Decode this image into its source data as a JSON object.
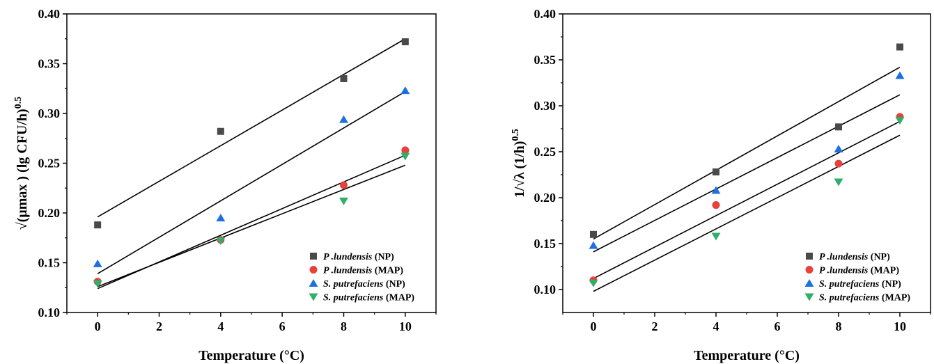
{
  "colors": {
    "series": [
      "#4a4a4a",
      "#e8403a",
      "#1f6fe0",
      "#2faf6a"
    ],
    "fit_line": "#000000",
    "axis": "#000000"
  },
  "chart_data": [
    {
      "type": "scatter",
      "title": "",
      "xlabel": "Temperature (°C)",
      "ylabel_main": "√(μmax ) (lg CFU/h)",
      "ylabel_exp": "0.5",
      "xlim": [
        -1,
        11
      ],
      "ylim": [
        0.1,
        0.4
      ],
      "xticks": [
        "0",
        "2",
        "4",
        "6",
        "8",
        "10"
      ],
      "yticks": [
        "0.10",
        "0.15",
        "0.20",
        "0.25",
        "0.30",
        "0.35",
        "0.40"
      ],
      "legend_position": "bottom-right",
      "grid": false,
      "series": [
        {
          "name_italic": "P .lundensis",
          "name_rest": " (NP)",
          "marker": "square",
          "x": [
            0,
            4,
            8,
            10
          ],
          "y": [
            0.188,
            0.282,
            0.335,
            0.372
          ],
          "fit": {
            "x": [
              0,
              10
            ],
            "y": [
              0.196,
              0.375
            ]
          }
        },
        {
          "name_italic": "P .lundensis",
          "name_rest": " (MAP)",
          "marker": "circle",
          "x": [
            0,
            4,
            8,
            10
          ],
          "y": [
            0.131,
            0.173,
            0.228,
            0.263
          ],
          "fit": {
            "x": [
              0,
              10
            ],
            "y": [
              0.124,
              0.258
            ]
          }
        },
        {
          "name_italic": "S. putrefaciens",
          "name_rest": " (NP)",
          "marker": "triangle-up",
          "x": [
            0,
            4,
            8,
            10
          ],
          "y": [
            0.149,
            0.195,
            0.294,
            0.323
          ],
          "fit": {
            "x": [
              0,
              10
            ],
            "y": [
              0.139,
              0.322
            ]
          }
        },
        {
          "name_italic": "S. putrefaciens",
          "name_rest": " (MAP)",
          "marker": "triangle-down",
          "x": [
            0,
            4,
            8,
            10
          ],
          "y": [
            0.129,
            0.172,
            0.212,
            0.257
          ],
          "fit": {
            "x": [
              0,
              10
            ],
            "y": [
              0.126,
              0.248
            ]
          }
        }
      ]
    },
    {
      "type": "scatter",
      "title": "",
      "xlabel": "Temperature (°C)",
      "ylabel_main": "1/√λ (1/h)",
      "ylabel_exp": "0.5",
      "xlim": [
        -1,
        11
      ],
      "ylim": [
        0.075,
        0.4
      ],
      "xticks": [
        "0",
        "2",
        "4",
        "6",
        "8",
        "10"
      ],
      "yticks": [
        "0.10",
        "0.15",
        "0.20",
        "0.25",
        "0.30",
        "0.35",
        "0.40"
      ],
      "legend_position": "bottom-right",
      "grid": false,
      "series": [
        {
          "name_italic": "P .lundensis",
          "name_rest": " (NP)",
          "marker": "square",
          "x": [
            0,
            4,
            8,
            10
          ],
          "y": [
            0.16,
            0.228,
            0.277,
            0.364
          ],
          "fit": {
            "x": [
              0,
              10
            ],
            "y": [
              0.155,
              0.342
            ]
          }
        },
        {
          "name_italic": "P .lundensis",
          "name_rest": " (MAP)",
          "marker": "circle",
          "x": [
            0,
            4,
            8,
            10
          ],
          "y": [
            0.11,
            0.192,
            0.237,
            0.288
          ],
          "fit": {
            "x": [
              0,
              10
            ],
            "y": [
              0.112,
              0.283
            ]
          }
        },
        {
          "name_italic": "S. putrefaciens",
          "name_rest": " (NP)",
          "marker": "triangle-up",
          "x": [
            0,
            4,
            8,
            10
          ],
          "y": [
            0.148,
            0.208,
            0.253,
            0.333
          ],
          "fit": {
            "x": [
              0,
              10
            ],
            "y": [
              0.141,
              0.312
            ]
          }
        },
        {
          "name_italic": "S. putrefaciens",
          "name_rest": " (MAP)",
          "marker": "triangle-down",
          "x": [
            0,
            4,
            8,
            10
          ],
          "y": [
            0.107,
            0.158,
            0.217,
            0.284
          ],
          "fit": {
            "x": [
              0,
              10
            ],
            "y": [
              0.098,
              0.268
            ]
          }
        }
      ]
    }
  ]
}
